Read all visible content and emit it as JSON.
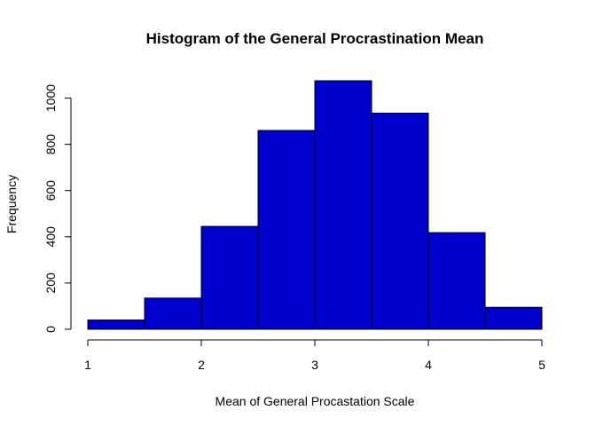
{
  "chart_data": {
    "type": "bar",
    "title": "Histogram of the General Procrastination Mean",
    "xlabel": "Mean of General Procastation Scale",
    "ylabel": "Frequency",
    "bins": [
      {
        "x0": 1.0,
        "x1": 1.5,
        "count": 40
      },
      {
        "x0": 1.5,
        "x1": 2.0,
        "count": 135
      },
      {
        "x0": 2.0,
        "x1": 2.5,
        "count": 445
      },
      {
        "x0": 2.5,
        "x1": 3.0,
        "count": 860
      },
      {
        "x0": 3.0,
        "x1": 3.5,
        "count": 1075
      },
      {
        "x0": 3.5,
        "x1": 4.0,
        "count": 935
      },
      {
        "x0": 4.0,
        "x1": 4.5,
        "count": 418
      },
      {
        "x0": 4.5,
        "x1": 5.0,
        "count": 95
      }
    ],
    "xlim": [
      1,
      5
    ],
    "ylim": [
      0,
      1075
    ],
    "xticks": [
      "1",
      "2",
      "3",
      "4",
      "5"
    ],
    "yticks": [
      "0",
      "200",
      "400",
      "600",
      "800",
      "1000"
    ],
    "bar_color": "#0000CD",
    "bar_border": "#000000",
    "grid": false,
    "legend": "none"
  }
}
